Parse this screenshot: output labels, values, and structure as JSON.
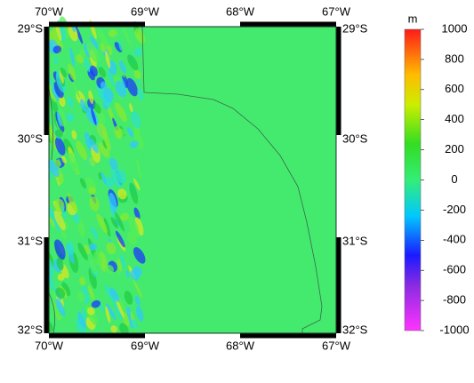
{
  "map": {
    "lon_labels": [
      "70°W",
      "69°W",
      "68°W",
      "67°W"
    ],
    "lat_labels": [
      "29°S",
      "30°S",
      "31°S",
      "32°S"
    ],
    "colorbar": {
      "unit": "m",
      "lim": [
        -1000,
        1000
      ],
      "ticks": [
        1000,
        800,
        600,
        400,
        200,
        0,
        -200,
        -400,
        -600,
        -800,
        -1000
      ]
    }
  }
}
